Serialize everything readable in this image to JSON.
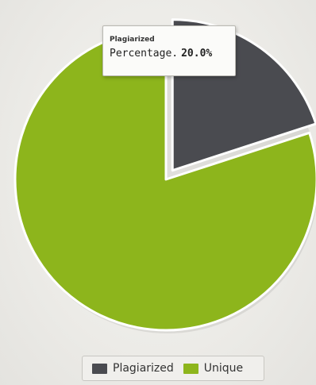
{
  "chart_data": {
    "type": "pie",
    "series": [
      {
        "name": "Plagiarized",
        "value": 20.0,
        "color": "#4a4b50"
      },
      {
        "name": "Unique",
        "value": 80.0,
        "color": "#8db51c"
      }
    ],
    "exploded": "Plagiarized",
    "legend_placement": "bottom"
  },
  "tooltip": {
    "title": "Plagiarized",
    "label": "Percentage.",
    "value": "20.0%"
  },
  "legend": {
    "items": [
      {
        "label": "Plagiarized",
        "color": "#4a4b50"
      },
      {
        "label": "Unique",
        "color": "#8db51c"
      }
    ]
  }
}
